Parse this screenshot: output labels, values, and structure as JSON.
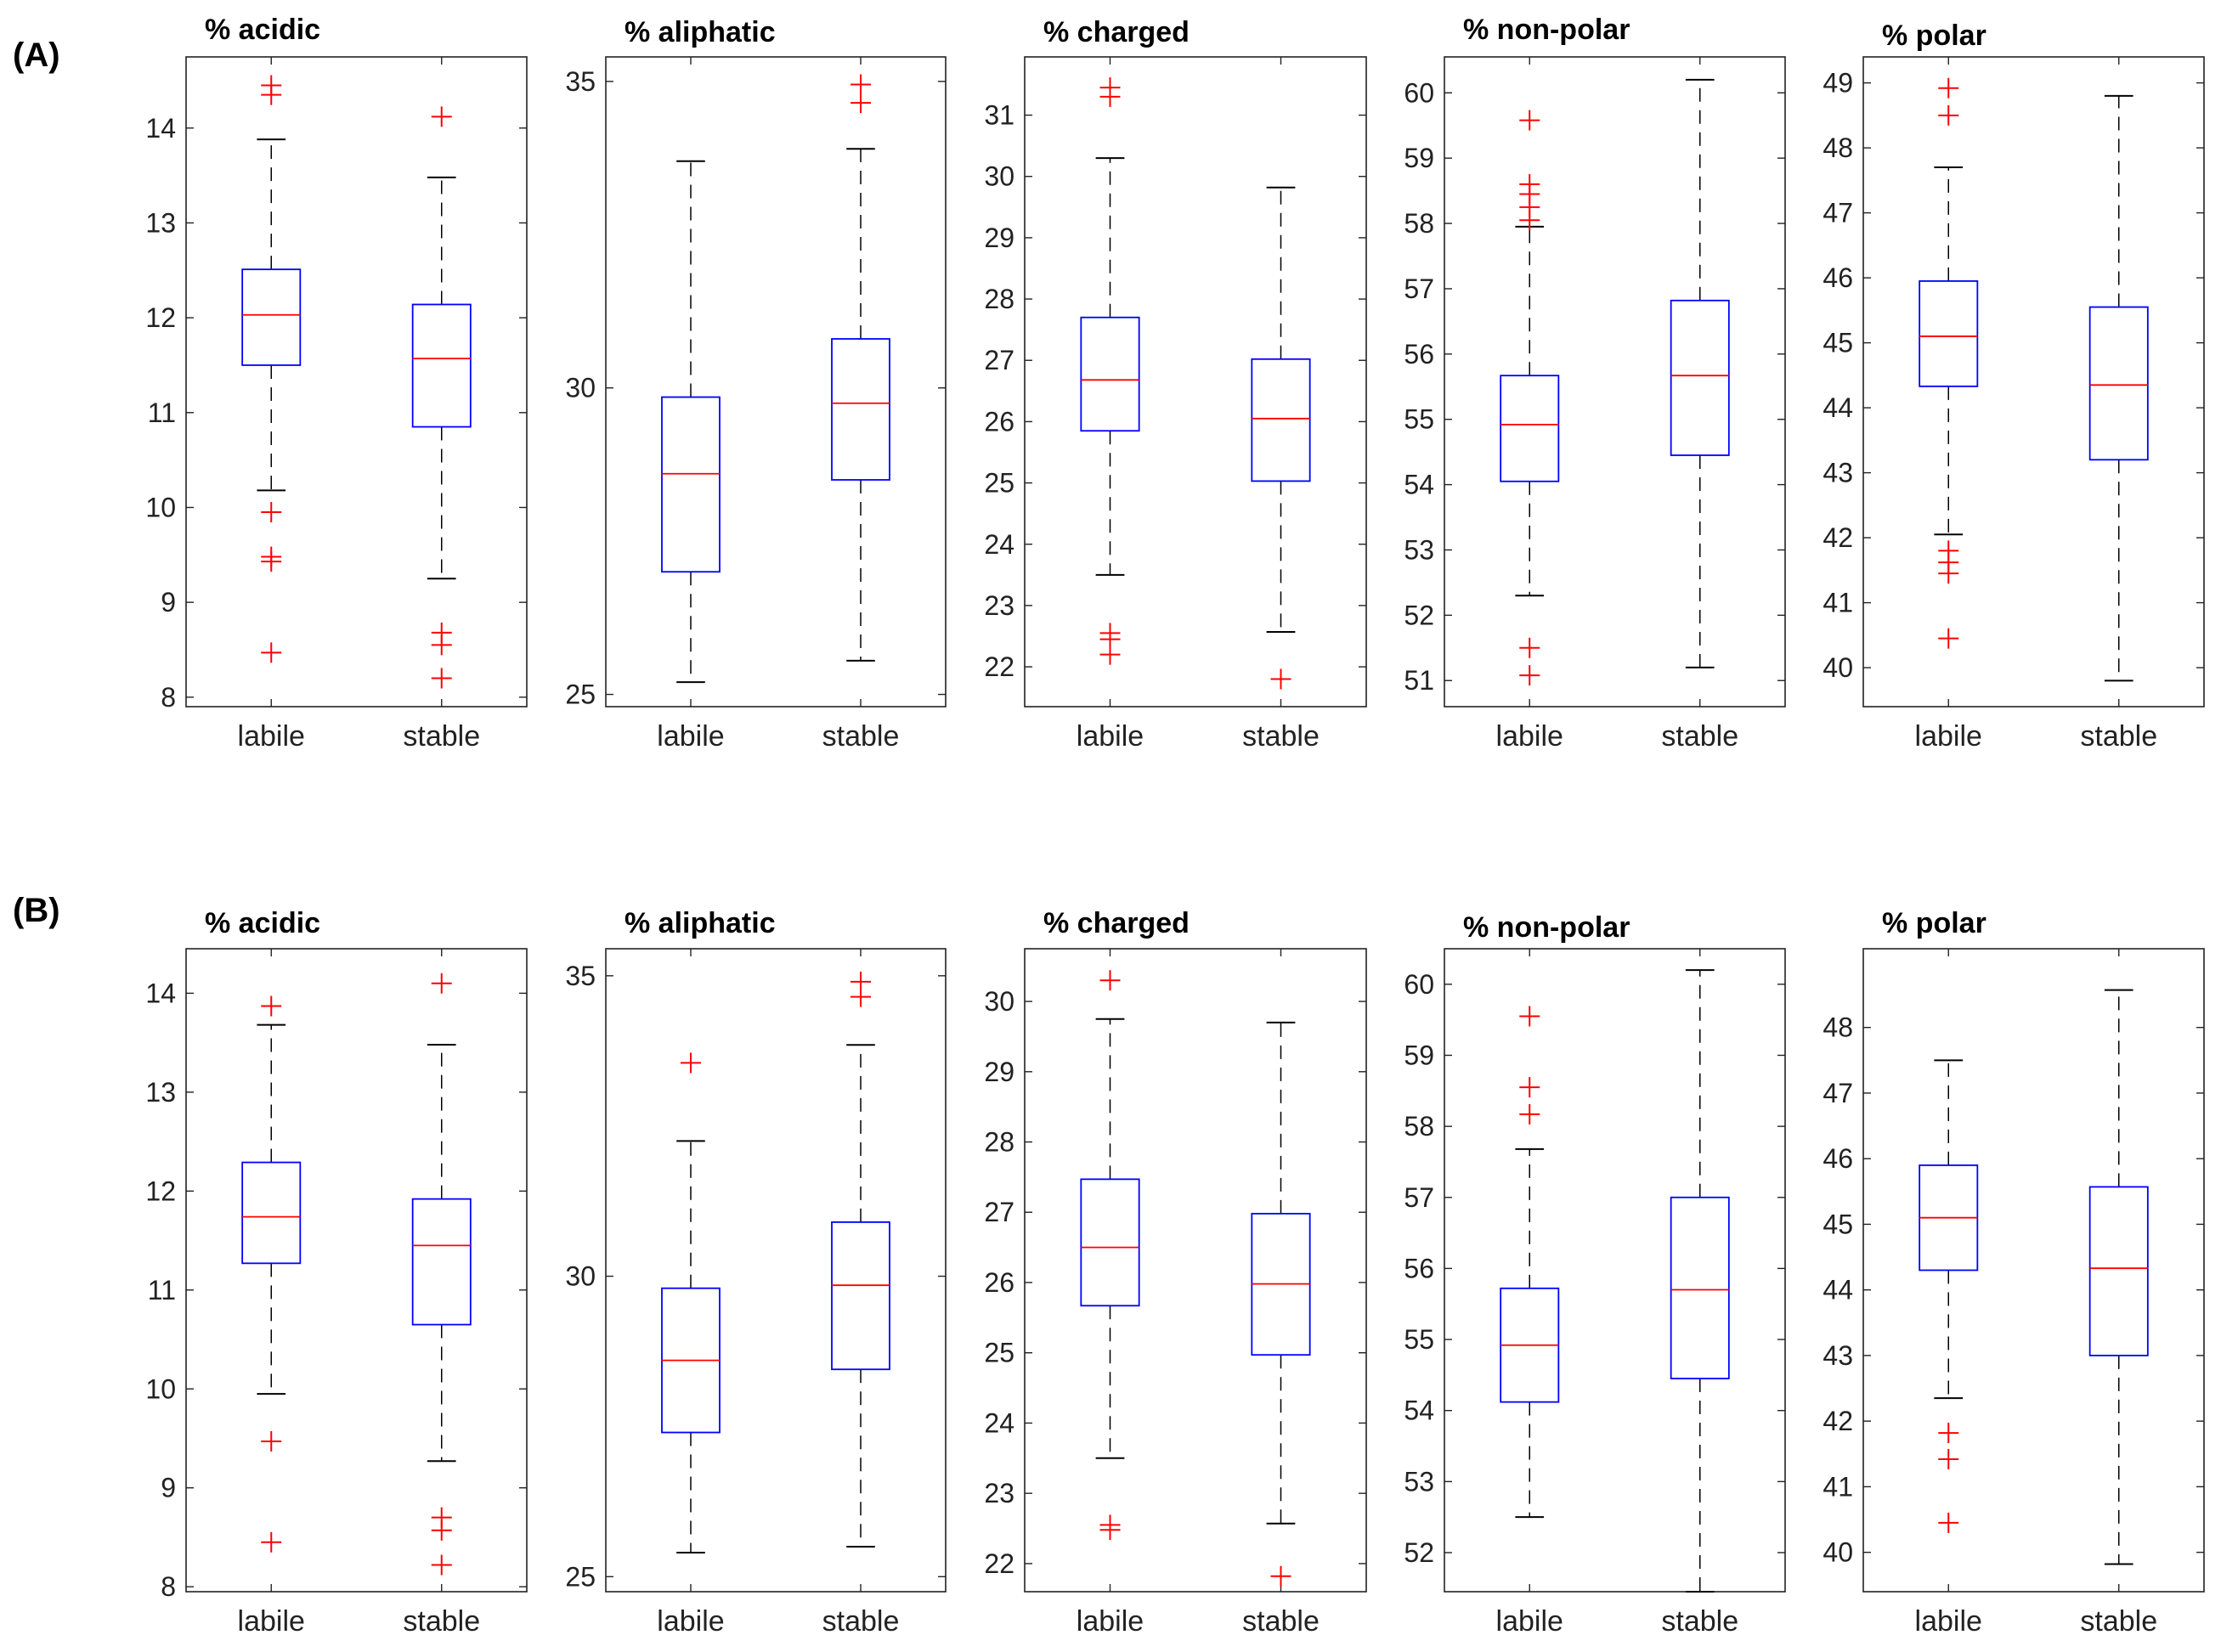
{
  "figure": {
    "colors": {
      "box": "#0000ff",
      "median": "#ff0000",
      "outlier": "#ff0000",
      "whisker": "#000000",
      "axis": "#222222"
    }
  },
  "chart_data": [
    {
      "type": "box",
      "panel": "(A)",
      "title": "% acidic",
      "categories": [
        "labile",
        "stable"
      ],
      "ylim": [
        7.9,
        14.75
      ],
      "yticks": [
        8,
        9,
        10,
        11,
        12,
        13,
        14
      ],
      "boxes": [
        {
          "q1": 11.5,
          "median": 12.03,
          "q3": 12.51,
          "whisker_low": 10.18,
          "whisker_high": 13.88,
          "outliers": [
            14.45,
            14.35,
            9.95,
            9.48,
            9.43,
            8.47
          ]
        },
        {
          "q1": 10.85,
          "median": 11.57,
          "q3": 12.14,
          "whisker_low": 9.25,
          "whisker_high": 13.48,
          "outliers": [
            14.12,
            8.68,
            8.55,
            8.2
          ]
        }
      ]
    },
    {
      "type": "box",
      "panel": "(A)",
      "title": "% aliphatic",
      "categories": [
        "labile",
        "stable"
      ],
      "ylim": [
        24.8,
        35.4
      ],
      "yticks": [
        25,
        30,
        35
      ],
      "boxes": [
        {
          "q1": 27.0,
          "median": 28.6,
          "q3": 29.85,
          "whisker_low": 25.2,
          "whisker_high": 33.7,
          "outliers": []
        },
        {
          "q1": 28.5,
          "median": 29.75,
          "q3": 30.8,
          "whisker_low": 25.55,
          "whisker_high": 33.9,
          "outliers": [
            34.95,
            34.65
          ]
        }
      ]
    },
    {
      "type": "box",
      "panel": "(A)",
      "title": "% charged",
      "categories": [
        "labile",
        "stable"
      ],
      "ylim": [
        21.35,
        31.95
      ],
      "yticks": [
        22,
        23,
        24,
        25,
        26,
        27,
        28,
        29,
        30,
        31
      ],
      "boxes": [
        {
          "q1": 25.85,
          "median": 26.68,
          "q3": 27.7,
          "whisker_low": 23.5,
          "whisker_high": 30.3,
          "outliers": [
            31.45,
            31.3,
            22.55,
            22.45,
            22.2
          ]
        },
        {
          "q1": 25.03,
          "median": 26.05,
          "q3": 27.02,
          "whisker_low": 22.57,
          "whisker_high": 29.82,
          "outliers": [
            21.8
          ]
        }
      ]
    },
    {
      "type": "box",
      "panel": "(A)",
      "title": "% non-polar",
      "categories": [
        "labile",
        "stable"
      ],
      "ylim": [
        50.6,
        60.55
      ],
      "yticks": [
        51,
        52,
        53,
        54,
        55,
        56,
        57,
        58,
        59,
        60
      ],
      "boxes": [
        {
          "q1": 54.05,
          "median": 54.92,
          "q3": 55.67,
          "whisker_low": 52.3,
          "whisker_high": 57.95,
          "outliers": [
            59.58,
            58.6,
            58.45,
            58.25,
            58.05,
            51.5,
            51.08
          ]
        },
        {
          "q1": 54.45,
          "median": 55.67,
          "q3": 56.82,
          "whisker_low": 51.2,
          "whisker_high": 60.2,
          "outliers": []
        }
      ]
    },
    {
      "type": "box",
      "panel": "(A)",
      "title": "% polar",
      "categories": [
        "labile",
        "stable"
      ],
      "ylim": [
        39.4,
        49.4
      ],
      "yticks": [
        40,
        41,
        42,
        43,
        44,
        45,
        46,
        47,
        48,
        49
      ],
      "boxes": [
        {
          "q1": 44.33,
          "median": 45.1,
          "q3": 45.95,
          "whisker_low": 42.05,
          "whisker_high": 47.7,
          "outliers": [
            48.92,
            48.5,
            41.8,
            41.62,
            41.45,
            40.45
          ]
        },
        {
          "q1": 43.2,
          "median": 44.35,
          "q3": 45.55,
          "whisker_low": 39.8,
          "whisker_high": 48.8,
          "outliers": []
        }
      ]
    },
    {
      "type": "box",
      "panel": "(B)",
      "title": "% acidic",
      "categories": [
        "labile",
        "stable"
      ],
      "ylim": [
        7.95,
        14.45
      ],
      "yticks": [
        8,
        9,
        10,
        11,
        12,
        13,
        14
      ],
      "boxes": [
        {
          "q1": 11.27,
          "median": 11.74,
          "q3": 12.29,
          "whisker_low": 9.95,
          "whisker_high": 13.68,
          "outliers": [
            13.87,
            9.47,
            8.45
          ]
        },
        {
          "q1": 10.65,
          "median": 11.45,
          "q3": 11.92,
          "whisker_low": 9.27,
          "whisker_high": 13.48,
          "outliers": [
            14.1,
            8.7,
            8.57,
            8.22
          ]
        }
      ]
    },
    {
      "type": "box",
      "panel": "(B)",
      "title": "% aliphatic",
      "categories": [
        "labile",
        "stable"
      ],
      "ylim": [
        24.75,
        35.45
      ],
      "yticks": [
        25,
        30,
        35
      ],
      "boxes": [
        {
          "q1": 27.4,
          "median": 28.6,
          "q3": 29.8,
          "whisker_low": 25.4,
          "whisker_high": 32.25,
          "outliers": [
            33.55
          ]
        },
        {
          "q1": 28.45,
          "median": 29.85,
          "q3": 30.9,
          "whisker_low": 25.5,
          "whisker_high": 33.85,
          "outliers": [
            34.9,
            34.65
          ]
        }
      ]
    },
    {
      "type": "box",
      "panel": "(B)",
      "title": "% charged",
      "categories": [
        "labile",
        "stable"
      ],
      "ylim": [
        21.6,
        30.75
      ],
      "yticks": [
        22,
        23,
        24,
        25,
        26,
        27,
        28,
        29,
        30
      ],
      "boxes": [
        {
          "q1": 25.67,
          "median": 26.5,
          "q3": 27.47,
          "whisker_low": 23.5,
          "whisker_high": 29.75,
          "outliers": [
            30.3,
            22.55,
            22.48
          ]
        },
        {
          "q1": 24.97,
          "median": 25.98,
          "q3": 26.98,
          "whisker_low": 22.57,
          "whisker_high": 29.7,
          "outliers": [
            21.82
          ]
        }
      ]
    },
    {
      "type": "box",
      "panel": "(B)",
      "title": "% non-polar",
      "categories": [
        "labile",
        "stable"
      ],
      "ylim": [
        51.45,
        60.5
      ],
      "yticks": [
        52,
        53,
        54,
        55,
        56,
        57,
        58,
        59,
        60
      ],
      "boxes": [
        {
          "q1": 54.12,
          "median": 54.92,
          "q3": 55.72,
          "whisker_low": 52.5,
          "whisker_high": 57.68,
          "outliers": [
            59.55,
            58.55,
            58.17
          ]
        },
        {
          "q1": 54.45,
          "median": 55.7,
          "q3": 57.0,
          "whisker_low": 51.45,
          "whisker_high": 60.2,
          "outliers": []
        }
      ]
    },
    {
      "type": "box",
      "panel": "(B)",
      "title": "% polar",
      "categories": [
        "labile",
        "stable"
      ],
      "ylim": [
        39.4,
        49.2
      ],
      "yticks": [
        40,
        41,
        42,
        43,
        44,
        45,
        46,
        47,
        48
      ],
      "boxes": [
        {
          "q1": 44.3,
          "median": 45.1,
          "q3": 45.9,
          "whisker_low": 42.35,
          "whisker_high": 47.5,
          "outliers": [
            41.82,
            41.42,
            40.45
          ]
        },
        {
          "q1": 43.0,
          "median": 44.33,
          "q3": 45.57,
          "whisker_low": 39.82,
          "whisker_high": 48.57,
          "outliers": []
        }
      ]
    }
  ]
}
